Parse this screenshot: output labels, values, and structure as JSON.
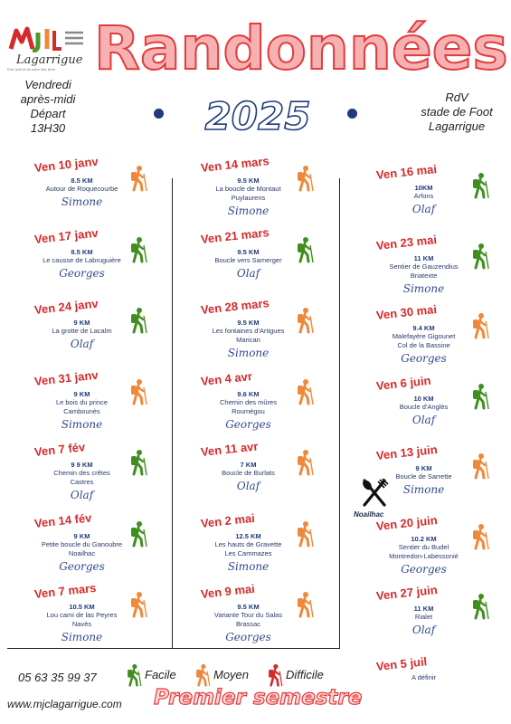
{
  "header": {
    "logo_text": "Lagarrigue",
    "logo_subtitle": "Etre actif et de créer des liens",
    "title": "Randonnées",
    "year": "2025",
    "depart_line1": "Vendredi",
    "depart_line2": "après-midi",
    "depart_line3": "Départ",
    "depart_line4": "13H30",
    "rdv_line1": "RdV",
    "rdv_line2": "stade de Foot",
    "rdv_line3": "Lagarrigue"
  },
  "colors": {
    "facile": "#3f8f1f",
    "moyen": "#f0883a",
    "difficile": "#d42a2a",
    "date": "#d42a2a",
    "navy": "#1f3b7a"
  },
  "columns": [
    [
      {
        "date": "Ven 10 janv",
        "km": "8.5 KM",
        "place1": "Autour de Roquecourbe",
        "place2": "",
        "guide": "Simone",
        "level": "moyen"
      },
      {
        "date": "Ven 17 janv",
        "km": "8.5 KM",
        "place1": "Le causse de Labruguière",
        "place2": "",
        "guide": "Georges",
        "level": "facile"
      },
      {
        "date": "Ven 24 janv",
        "km": "9 KM",
        "place1": "La grotte de Lacalm",
        "place2": "",
        "guide": "Olaf",
        "level": "facile"
      },
      {
        "date": "Ven 31 janv",
        "km": "9 KM",
        "place1": "Le bois du prince",
        "place2": "Cambounès",
        "guide": "Simone",
        "level": "moyen"
      },
      {
        "date": "Ven 7 fév",
        "km": "9 9 KM",
        "place1": "Chemin des crêtes",
        "place2": "Castres",
        "guide": "Olaf",
        "level": "facile"
      },
      {
        "date": "Ven 14 fév",
        "km": "9 KM",
        "place1": "Petite boucle du Ganoubre",
        "place2": "Noailhac",
        "guide": "Georges",
        "level": "facile"
      },
      {
        "date": "Ven 7 mars",
        "km": "10.5 KM",
        "place1": "Lou cami de las Peyres",
        "place2": "Navès",
        "guide": "Simone",
        "level": "moyen"
      }
    ],
    [
      {
        "date": "Ven 14 mars",
        "km": "9.5 KM",
        "place1": "La boucle de Montaut",
        "place2": "Puylaurens",
        "guide": "Simone",
        "level": "moyen"
      },
      {
        "date": "Ven 21 mars",
        "km": "9.5 KM",
        "place1": "Boucle vers Samerger",
        "place2": "",
        "guide": "Olaf",
        "level": "facile"
      },
      {
        "date": "Ven 28 mars",
        "km": "9.5 KM",
        "place1": "Les fontaines d'Artigues",
        "place2": "Marican",
        "guide": "Simone",
        "level": "moyen"
      },
      {
        "date": "Ven 4 avr",
        "km": "9.6 KM",
        "place1": "Chemin des mûres",
        "place2": "Roumégou",
        "guide": "Georges",
        "level": "moyen"
      },
      {
        "date": "Ven 11 avr",
        "km": "7 KM",
        "place1": "Boucle de Burlats",
        "place2": "",
        "guide": "Olaf",
        "level": "moyen"
      },
      {
        "date": "Ven 2 mai",
        "km": "12.5 KM",
        "place1": "Les hauts de Gravette",
        "place2": "Les Cammazes",
        "guide": "Simone",
        "level": "moyen"
      },
      {
        "date": "Ven 9 mai",
        "km": "9.5 KM",
        "place1": "Variante Tour du Salas",
        "place2": "Brassac",
        "guide": "Georges",
        "level": "moyen"
      }
    ],
    [
      {
        "date": "Ven 16 mai",
        "km": "10KM",
        "place1": "Arfons",
        "place2": "",
        "guide": "Olaf",
        "level": "facile"
      },
      {
        "date": "Ven 23 mai",
        "km": "11 KM",
        "place1": "Sentier  de Gauzendius",
        "place2": "Briatexte",
        "guide": "Simone",
        "level": "facile"
      },
      {
        "date": "Ven 30 mai",
        "km": "9.4 KM",
        "place1": "Malefayère Gigounet",
        "place2": "Col de la Bassine",
        "guide": "Georges",
        "level": "moyen"
      },
      {
        "date": "Ven 6 juin",
        "km": "10 KM",
        "place1": "Boucle d'Anglès",
        "place2": "",
        "guide": "Olaf",
        "level": "facile"
      },
      {
        "date": "Ven 13 juin",
        "km": "9 KM",
        "place1": "Boucle de Sarrette",
        "place2": "",
        "guide": "Simone",
        "level": "moyen"
      },
      {
        "date": "Ven 20 juin",
        "km": "10.2 KM",
        "place1": "Sentier du Budel",
        "place2": "Montredon-Labessonié",
        "guide": "Georges",
        "level": "moyen"
      },
      {
        "date": "Ven 27 juin",
        "km": "11 KM",
        "place1": "Rialet",
        "place2": "",
        "guide": "Olaf",
        "level": "facile"
      },
      {
        "date": "Ven 5 juil",
        "km": "",
        "place1": "A définir",
        "place2": "",
        "guide": "",
        "level": ""
      }
    ]
  ],
  "noailhac_label": "Noailhac",
  "footer": {
    "phone": "05 63 35 99 37",
    "website": "www.mjclagarrigue.com",
    "legend_facile": "Facile",
    "legend_moyen": "Moyen",
    "legend_difficile": "Difficile",
    "semestre": "Premier semestre"
  }
}
